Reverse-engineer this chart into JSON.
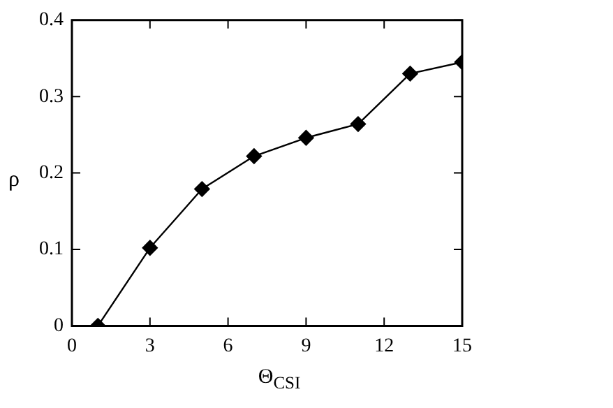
{
  "chart_data": {
    "type": "line",
    "xlabel": "Θ$_{CSI}$",
    "ylabel": "ρ",
    "x": [
      1,
      3,
      5,
      7,
      9,
      11,
      13,
      15
    ],
    "series": [
      {
        "color": "#000000",
        "values": [
          0,
          0.102,
          0.179,
          0.222,
          0.246,
          0.264,
          0.33,
          0.345
        ]
      }
    ],
    "xlim": [
      0,
      15
    ],
    "xticks": [
      0,
      3,
      6,
      9,
      12,
      15
    ],
    "ylim": [
      0,
      0.4
    ],
    "yticks": [
      0,
      0.1,
      0.2,
      0.3,
      0.4
    ],
    "marker": "diamond",
    "line_style": "solid",
    "legend": false,
    "grid": false
  }
}
